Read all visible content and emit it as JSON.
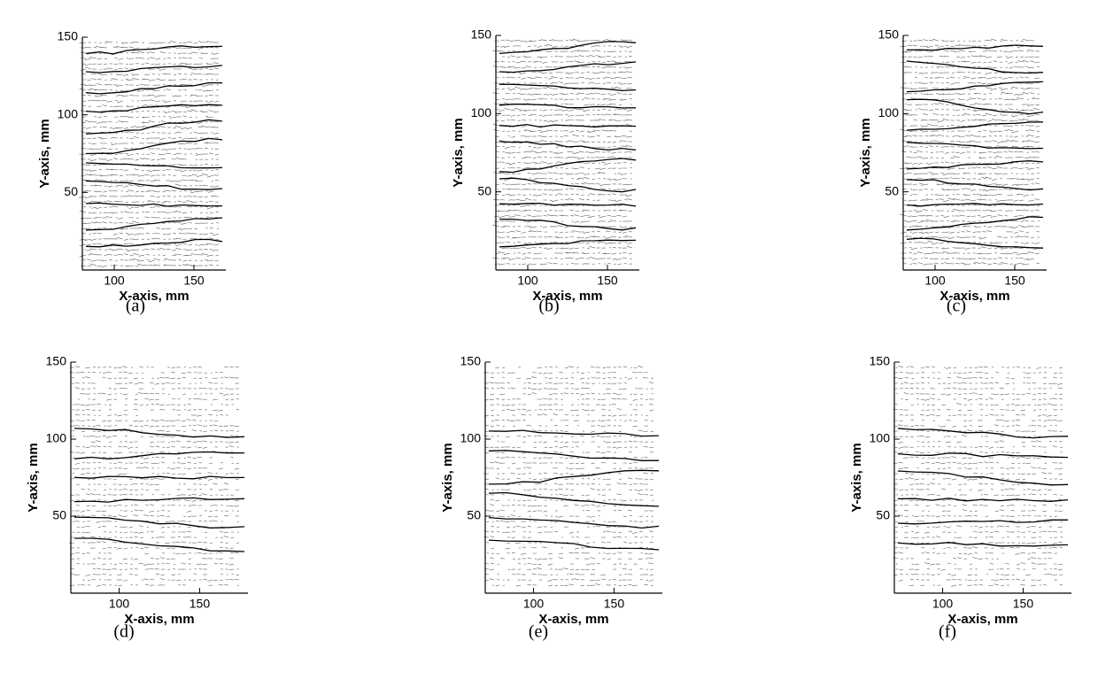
{
  "chart_data": [
    {
      "type": "vector",
      "caption": "(a)",
      "xlabel": "X-axis, mm",
      "ylabel": "Y-axis, mm",
      "xlim": [
        80,
        170
      ],
      "ylim": [
        0,
        150
      ],
      "xticks": [
        100,
        150
      ],
      "yticks": [
        50,
        100,
        150
      ]
    },
    {
      "type": "vector",
      "caption": "(b)",
      "xlabel": "X-axis, mm",
      "ylabel": "Y-axis, mm",
      "xlim": [
        80,
        170
      ],
      "ylim": [
        0,
        150
      ],
      "xticks": [
        100,
        150
      ],
      "yticks": [
        50,
        100,
        150
      ]
    },
    {
      "type": "vector",
      "caption": "(c)",
      "xlabel": "X-axis, mm",
      "ylabel": "Y-axis, mm",
      "xlim": [
        80,
        170
      ],
      "ylim": [
        0,
        150
      ],
      "xticks": [
        100,
        150
      ],
      "yticks": [
        50,
        100,
        150
      ]
    },
    {
      "type": "vector",
      "caption": "(d)",
      "xlabel": "X-axis, mm",
      "ylabel": "Y-axis, mm",
      "xlim": [
        70,
        180
      ],
      "ylim": [
        0,
        150
      ],
      "xticks": [
        100,
        150
      ],
      "yticks": [
        50,
        100,
        150
      ]
    },
    {
      "type": "vector",
      "caption": "(e)",
      "xlabel": "X-axis, mm",
      "ylabel": "Y-axis, mm",
      "xlim": [
        70,
        180
      ],
      "ylim": [
        0,
        150
      ],
      "xticks": [
        100,
        150
      ],
      "yticks": [
        50,
        100,
        150
      ]
    },
    {
      "type": "vector",
      "caption": "(f)",
      "xlabel": "X-axis, mm",
      "ylabel": "Y-axis, mm",
      "xlim": [
        70,
        180
      ],
      "ylim": [
        0,
        150
      ],
      "xticks": [
        100,
        150
      ],
      "yticks": [
        50,
        100,
        150
      ]
    }
  ]
}
